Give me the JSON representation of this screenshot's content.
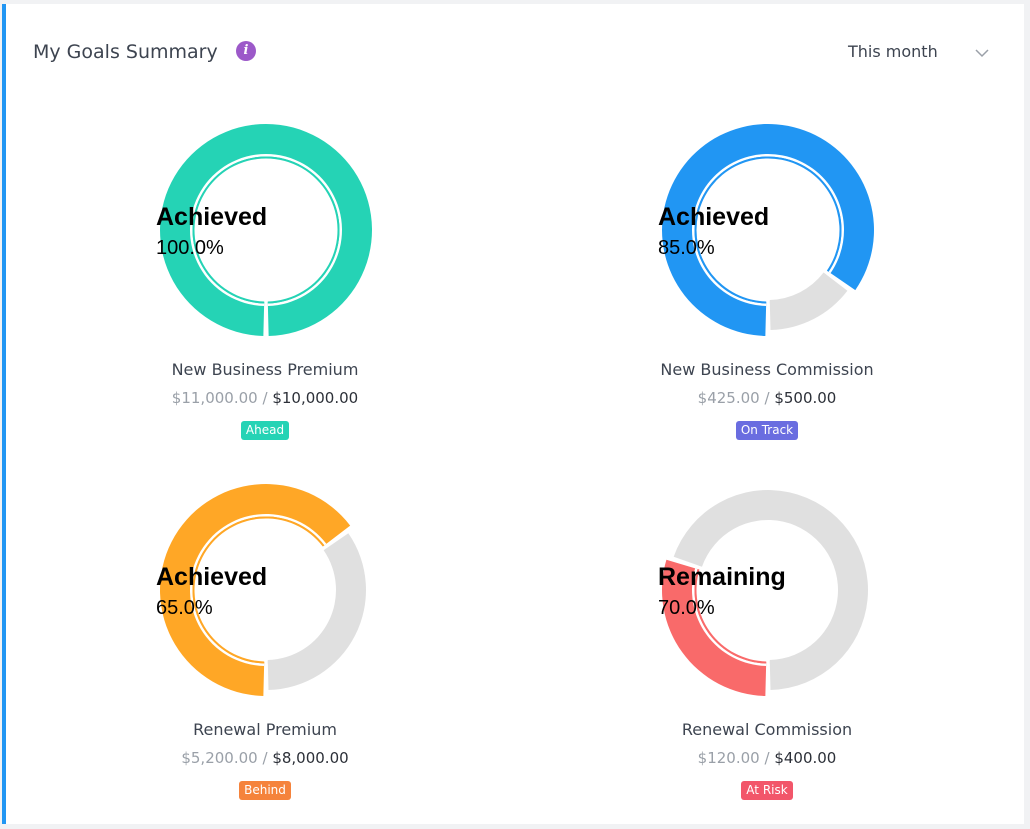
{
  "header": {
    "title": "My Goals Summary",
    "info_icon": "info-icon",
    "period_label": "This month",
    "period_icon": "chevron-down-icon"
  },
  "goals": [
    {
      "name": "New Business Premium",
      "label": "Achieved",
      "percent_text": "100.0%",
      "progress": 1.0,
      "actual": "$11,000.00",
      "target": "$10,000.00",
      "status": "Ahead",
      "color": "#25d3b5",
      "badge_color": "#25d3b5"
    },
    {
      "name": "New Business Commission",
      "label": "Achieved",
      "percent_text": "85.0%",
      "progress": 0.85,
      "actual": "$425.00",
      "target": "$500.00",
      "status": "On Track",
      "color": "#2196f3",
      "badge_color": "#6a6de0"
    },
    {
      "name": "Renewal Premium",
      "label": "Achieved",
      "percent_text": "65.0%",
      "progress": 0.65,
      "actual": "$5,200.00",
      "target": "$8,000.00",
      "status": "Behind",
      "color": "#ffa726",
      "badge_color": "#f5833c"
    },
    {
      "name": "Renewal Commission",
      "label": "Remaining",
      "percent_text": "70.0%",
      "progress": 0.3,
      "actual": "$120.00",
      "target": "$400.00",
      "status": "At Risk",
      "color": "#f96a6a",
      "badge_color": "#f2566a"
    }
  ],
  "track_color": "#e0e0e0",
  "sep": "/"
}
